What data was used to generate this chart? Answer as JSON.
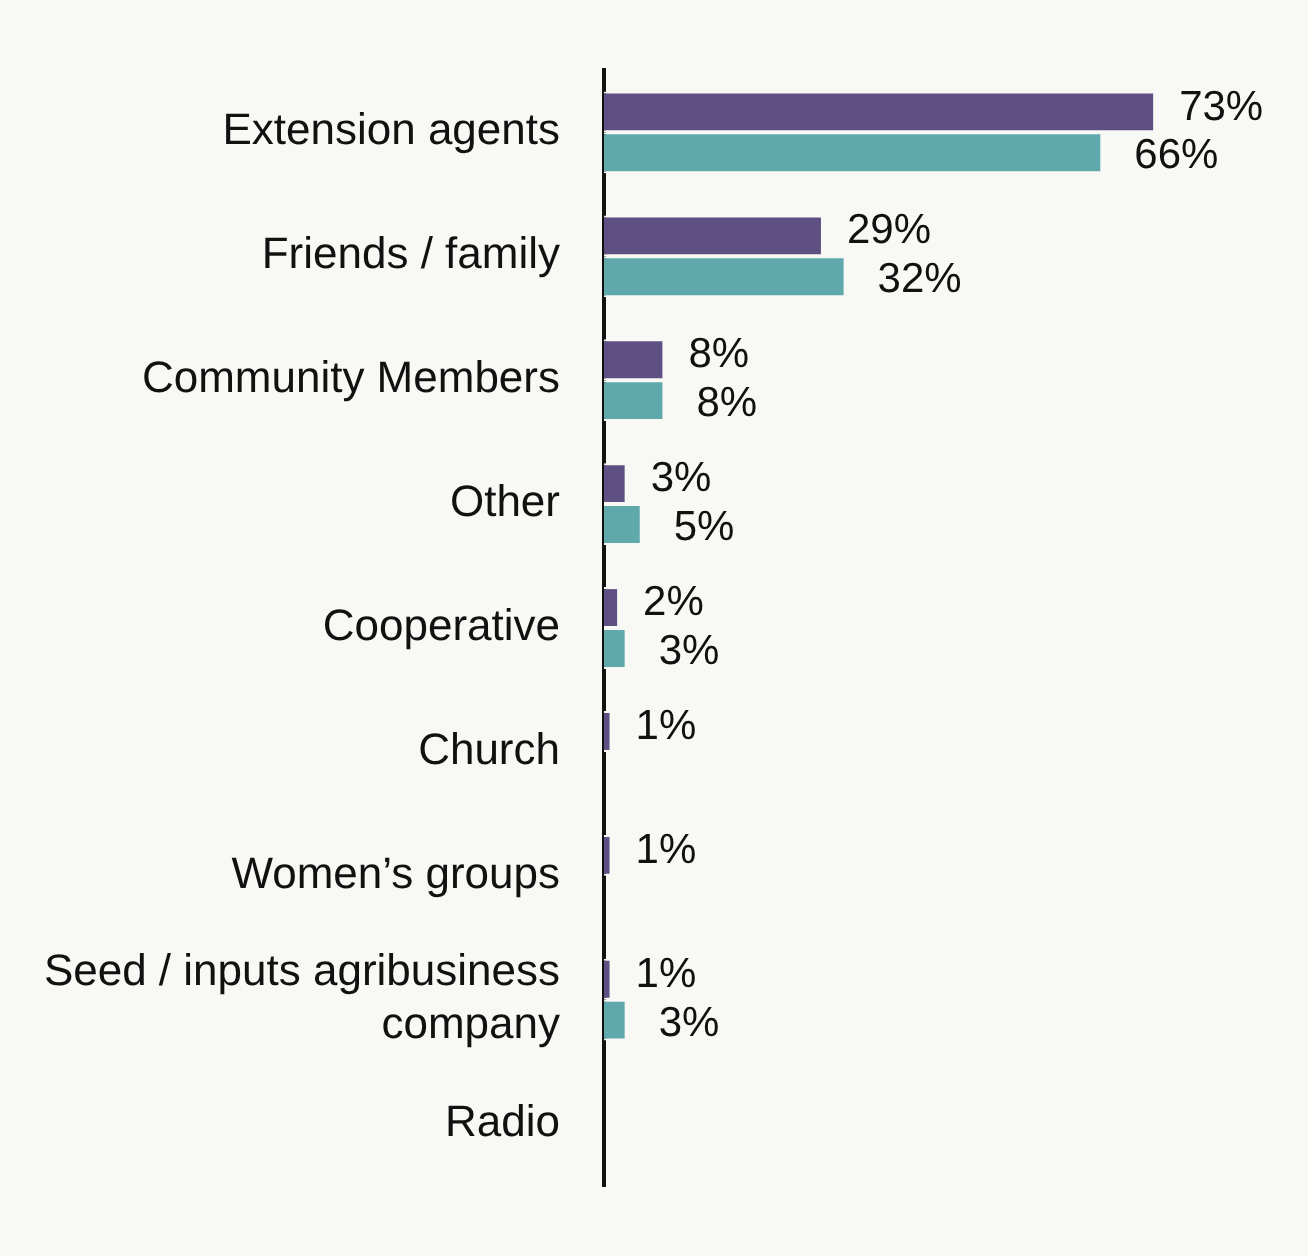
{
  "chart_data": {
    "type": "bar",
    "orientation": "horizontal",
    "categories": [
      "Extension agents",
      "Friends / family",
      "Community Members",
      "Other",
      "Cooperative",
      "Church",
      "Women’s groups",
      "Seed / inputs agribusiness company",
      "Radio"
    ],
    "series": [
      {
        "color": "#5e5082",
        "values": [
          73,
          29,
          8,
          3,
          2,
          1,
          1,
          1,
          null
        ],
        "value_labels": [
          "73%",
          "29%",
          "8%",
          "3%",
          "2%",
          "1%",
          "1%",
          "1%",
          null
        ]
      },
      {
        "color": "#5fa8ab",
        "values": [
          66,
          32,
          8,
          5,
          3,
          null,
          null,
          3,
          null
        ],
        "value_labels": [
          "66%",
          "32%",
          "8%",
          "5%",
          "3%",
          null,
          null,
          "3%",
          null
        ]
      }
    ],
    "tick_labels": "y",
    "legend": false
  }
}
